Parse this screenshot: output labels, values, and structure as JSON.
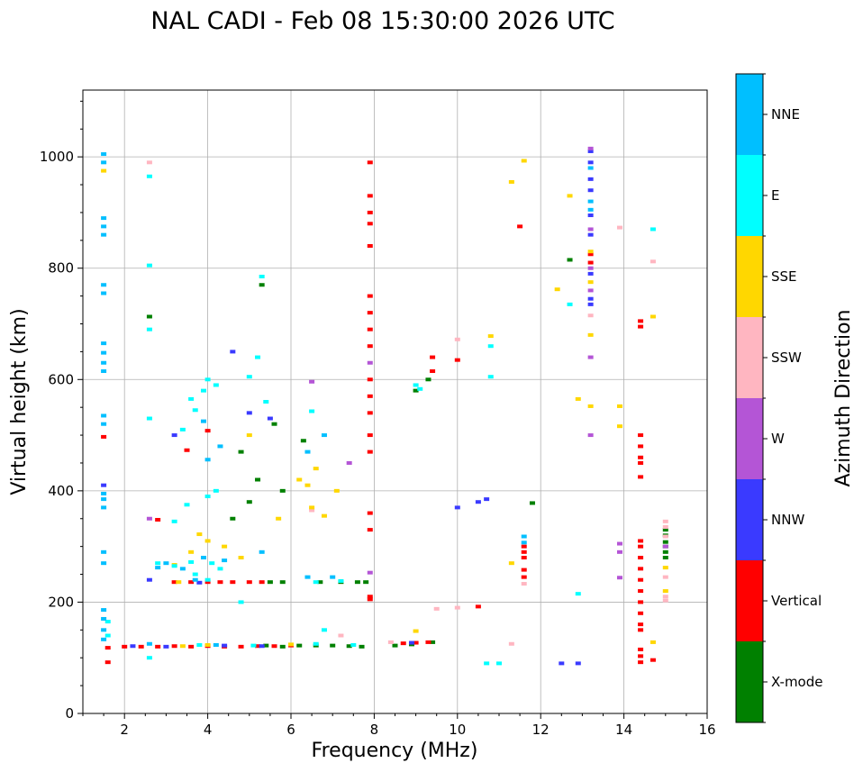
{
  "chart_data": {
    "type": "scatter",
    "title": "NAL CADI - Feb 08 15:30:00 2026 UTC",
    "xlabel": "Frequency (MHz)",
    "ylabel": "Virtual height (km)",
    "xlim": [
      1,
      16
    ],
    "ylim": [
      0,
      1120
    ],
    "xticks": [
      2,
      4,
      6,
      8,
      10,
      12,
      14,
      16
    ],
    "yticks": [
      0,
      200,
      400,
      600,
      800,
      1000
    ],
    "grid": true,
    "colorbar": {
      "label": "Azimuth Direction",
      "categories": [
        "X-mode",
        "Vertical",
        "NNW",
        "W",
        "SSW",
        "SSE",
        "E",
        "NNE"
      ],
      "colors": [
        "#008000",
        "#ff0000",
        "#3a3aff",
        "#b455d6",
        "#ffb6c1",
        "#ffd700",
        "#00ffff",
        "#00bfff"
      ]
    },
    "series": [
      {
        "name": "X-mode",
        "points": [
          [
            5.4,
            122
          ],
          [
            5.8,
            120
          ],
          [
            6.2,
            122
          ],
          [
            6.6,
            122
          ],
          [
            7.0,
            122
          ],
          [
            7.4,
            121
          ],
          [
            7.7,
            120
          ],
          [
            8.5,
            122
          ],
          [
            8.9,
            124
          ],
          [
            9.4,
            128
          ],
          [
            5.5,
            236
          ],
          [
            5.8,
            236
          ],
          [
            6.7,
            236
          ],
          [
            7.2,
            236
          ],
          [
            7.6,
            236
          ],
          [
            7.8,
            236
          ],
          [
            5.8,
            400
          ],
          [
            5.2,
            420
          ],
          [
            4.8,
            470
          ],
          [
            5.6,
            520
          ],
          [
            6.3,
            490
          ],
          [
            5.3,
            770
          ],
          [
            12.7,
            815
          ],
          [
            11.8,
            378
          ],
          [
            9.0,
            580
          ],
          [
            9.3,
            600
          ],
          [
            15.0,
            330
          ],
          [
            15.0,
            320
          ],
          [
            15.0,
            308
          ],
          [
            15.0,
            300
          ],
          [
            15.0,
            290
          ],
          [
            15.0,
            280
          ],
          [
            4.6,
            350
          ],
          [
            5.0,
            380
          ],
          [
            2.6,
            713
          ]
        ]
      },
      {
        "name": "Vertical",
        "points": [
          [
            1.6,
            118
          ],
          [
            1.6,
            92
          ],
          [
            2.0,
            120
          ],
          [
            2.4,
            120
          ],
          [
            2.8,
            120
          ],
          [
            3.2,
            121
          ],
          [
            3.6,
            120
          ],
          [
            4.0,
            121
          ],
          [
            4.4,
            120
          ],
          [
            4.8,
            120
          ],
          [
            5.2,
            121
          ],
          [
            5.6,
            121
          ],
          [
            6.0,
            122
          ],
          [
            8.7,
            126
          ],
          [
            9.0,
            127
          ],
          [
            9.3,
            128
          ],
          [
            3.2,
            236
          ],
          [
            3.6,
            236
          ],
          [
            4.0,
            236
          ],
          [
            4.3,
            236
          ],
          [
            4.6,
            236
          ],
          [
            5.0,
            236
          ],
          [
            5.3,
            236
          ],
          [
            7.9,
            205
          ],
          [
            7.9,
            210
          ],
          [
            7.9,
            570
          ],
          [
            7.9,
            750
          ],
          [
            7.9,
            990
          ],
          [
            7.9,
            930
          ],
          [
            7.9,
            900
          ],
          [
            7.9,
            880
          ],
          [
            7.9,
            840
          ],
          [
            7.9,
            720
          ],
          [
            7.9,
            690
          ],
          [
            7.9,
            660
          ],
          [
            7.9,
            600
          ],
          [
            7.9,
            540
          ],
          [
            7.9,
            500
          ],
          [
            7.9,
            470
          ],
          [
            7.9,
            360
          ],
          [
            7.9,
            330
          ],
          [
            1.5,
            497
          ],
          [
            4.0,
            508
          ],
          [
            3.5,
            473
          ],
          [
            2.8,
            348
          ],
          [
            11.6,
            300
          ],
          [
            11.6,
            290
          ],
          [
            11.6,
            280
          ],
          [
            11.6,
            258
          ],
          [
            11.6,
            245
          ],
          [
            14.4,
            300
          ],
          [
            14.4,
            280
          ],
          [
            14.4,
            260
          ],
          [
            14.4,
            240
          ],
          [
            14.4,
            220
          ],
          [
            14.4,
            200
          ],
          [
            14.4,
            180
          ],
          [
            14.4,
            160
          ],
          [
            14.4,
            150
          ],
          [
            14.4,
            310
          ],
          [
            14.4,
            500
          ],
          [
            14.4,
            480
          ],
          [
            14.4,
            460
          ],
          [
            14.4,
            450
          ],
          [
            14.4,
            425
          ],
          [
            14.4,
            115
          ],
          [
            14.4,
            103
          ],
          [
            14.4,
            92
          ],
          [
            14.7,
            96
          ],
          [
            14.4,
            705
          ],
          [
            14.4,
            695
          ],
          [
            10.0,
            635
          ],
          [
            10.5,
            192
          ],
          [
            11.5,
            875
          ],
          [
            9.4,
            640
          ],
          [
            9.4,
            615
          ],
          [
            13.2,
            810
          ],
          [
            13.2,
            825
          ]
        ]
      },
      {
        "name": "NNW",
        "points": [
          [
            2.2,
            121
          ],
          [
            3.0,
            120
          ],
          [
            4.4,
            122
          ],
          [
            5.3,
            121
          ],
          [
            8.9,
            127
          ],
          [
            10.0,
            370
          ],
          [
            10.5,
            380
          ],
          [
            10.7,
            385
          ],
          [
            12.9,
            90
          ],
          [
            12.5,
            90
          ],
          [
            13.2,
            1010
          ],
          [
            13.2,
            990
          ],
          [
            13.2,
            960
          ],
          [
            13.2,
            940
          ],
          [
            13.2,
            895
          ],
          [
            13.2,
            860
          ],
          [
            13.2,
            790
          ],
          [
            13.2,
            745
          ],
          [
            13.2,
            735
          ],
          [
            1.5,
            410
          ],
          [
            4.6,
            650
          ],
          [
            3.2,
            500
          ],
          [
            5.0,
            540
          ],
          [
            5.5,
            530
          ],
          [
            2.6,
            240
          ],
          [
            3.8,
            235
          ]
        ]
      },
      {
        "name": "W",
        "points": [
          [
            13.2,
            1015
          ],
          [
            13.2,
            870
          ],
          [
            13.2,
            800
          ],
          [
            13.2,
            760
          ],
          [
            13.2,
            640
          ],
          [
            13.2,
            500
          ],
          [
            13.9,
            305
          ],
          [
            13.9,
            290
          ],
          [
            13.9,
            244
          ],
          [
            7.9,
            630
          ],
          [
            7.9,
            253
          ],
          [
            6.5,
            596
          ],
          [
            7.4,
            450
          ],
          [
            15.0,
            300
          ],
          [
            2.6,
            350
          ]
        ]
      },
      {
        "name": "SSW",
        "points": [
          [
            8.4,
            128
          ],
          [
            10.0,
            190
          ],
          [
            11.3,
            125
          ],
          [
            11.6,
            233
          ],
          [
            13.2,
            715
          ],
          [
            13.9,
            873
          ],
          [
            14.7,
            812
          ],
          [
            15.0,
            345
          ],
          [
            15.0,
            335
          ],
          [
            15.0,
            318
          ],
          [
            15.0,
            245
          ],
          [
            15.0,
            210
          ],
          [
            15.0,
            203
          ],
          [
            9.5,
            188
          ],
          [
            10.0,
            672
          ],
          [
            6.5,
            365
          ],
          [
            2.6,
            990
          ],
          [
            7.2,
            140
          ]
        ]
      },
      {
        "name": "SSE",
        "points": [
          [
            1.5,
            975
          ],
          [
            3.4,
            121
          ],
          [
            4.0,
            123
          ],
          [
            6.0,
            124
          ],
          [
            9.0,
            148
          ],
          [
            11.3,
            270
          ],
          [
            11.3,
            955
          ],
          [
            11.6,
            993
          ],
          [
            12.4,
            762
          ],
          [
            12.7,
            930
          ],
          [
            12.9,
            565
          ],
          [
            13.2,
            552
          ],
          [
            13.2,
            680
          ],
          [
            13.2,
            775
          ],
          [
            13.2,
            830
          ],
          [
            13.9,
            552
          ],
          [
            13.9,
            516
          ],
          [
            14.7,
            713
          ],
          [
            14.7,
            128
          ],
          [
            15.0,
            262
          ],
          [
            15.0,
            220
          ],
          [
            10.8,
            678
          ],
          [
            7.1,
            400
          ],
          [
            6.5,
            370
          ],
          [
            6.2,
            420
          ],
          [
            4.4,
            300
          ],
          [
            3.6,
            290
          ],
          [
            3.8,
            322
          ],
          [
            4.0,
            310
          ],
          [
            5.0,
            500
          ],
          [
            5.7,
            350
          ],
          [
            6.4,
            410
          ],
          [
            6.6,
            440
          ],
          [
            6.8,
            355
          ],
          [
            3.2,
            267
          ],
          [
            4.8,
            280
          ],
          [
            3.3,
            236
          ]
        ]
      },
      {
        "name": "E",
        "points": [
          [
            1.6,
            140
          ],
          [
            1.6,
            165
          ],
          [
            2.6,
            100
          ],
          [
            3.8,
            123
          ],
          [
            5.1,
            122
          ],
          [
            6.6,
            125
          ],
          [
            6.8,
            150
          ],
          [
            7.5,
            123
          ],
          [
            10.7,
            90
          ],
          [
            11.0,
            90
          ],
          [
            10.8,
            605
          ],
          [
            10.8,
            660
          ],
          [
            12.7,
            735
          ],
          [
            12.9,
            215
          ],
          [
            14.7,
            870
          ],
          [
            2.6,
            530
          ],
          [
            4.0,
            600
          ],
          [
            4.2,
            590
          ],
          [
            3.9,
            580
          ],
          [
            3.6,
            565
          ],
          [
            3.7,
            545
          ],
          [
            3.4,
            510
          ],
          [
            4.2,
            400
          ],
          [
            4.0,
            390
          ],
          [
            3.5,
            375
          ],
          [
            3.2,
            345
          ],
          [
            2.8,
            270
          ],
          [
            3.2,
            265
          ],
          [
            3.6,
            272
          ],
          [
            4.1,
            270
          ],
          [
            4.3,
            260
          ],
          [
            3.7,
            250
          ],
          [
            4.0,
            240
          ],
          [
            4.8,
            200
          ],
          [
            5.2,
            640
          ],
          [
            5.3,
            785
          ],
          [
            9.0,
            590
          ],
          [
            9.1,
            583
          ],
          [
            6.5,
            543
          ],
          [
            5.4,
            560
          ],
          [
            5.0,
            605
          ],
          [
            6.6,
            236
          ],
          [
            7.2,
            238
          ],
          [
            2.6,
            965
          ],
          [
            2.6,
            805
          ],
          [
            2.6,
            690
          ]
        ]
      },
      {
        "name": "NNE",
        "points": [
          [
            1.5,
            1005
          ],
          [
            1.5,
            990
          ],
          [
            1.5,
            890
          ],
          [
            1.5,
            875
          ],
          [
            1.5,
            860
          ],
          [
            1.5,
            770
          ],
          [
            1.5,
            755
          ],
          [
            1.5,
            665
          ],
          [
            1.5,
            648
          ],
          [
            1.5,
            630
          ],
          [
            1.5,
            615
          ],
          [
            1.5,
            535
          ],
          [
            1.5,
            520
          ],
          [
            1.5,
            395
          ],
          [
            1.5,
            385
          ],
          [
            1.5,
            370
          ],
          [
            1.5,
            290
          ],
          [
            1.5,
            270
          ],
          [
            1.5,
            186
          ],
          [
            1.5,
            170
          ],
          [
            1.5,
            150
          ],
          [
            1.5,
            133
          ],
          [
            2.6,
            125
          ],
          [
            4.2,
            123
          ],
          [
            11.6,
            318
          ],
          [
            11.6,
            307
          ],
          [
            13.2,
            920
          ],
          [
            13.2,
            905
          ],
          [
            13.2,
            980
          ],
          [
            6.8,
            500
          ],
          [
            6.4,
            470
          ],
          [
            3.9,
            525
          ],
          [
            4.3,
            480
          ],
          [
            2.8,
            262
          ],
          [
            3.0,
            270
          ],
          [
            3.4,
            260
          ],
          [
            3.9,
            280
          ],
          [
            4.4,
            275
          ],
          [
            5.3,
            290
          ],
          [
            6.4,
            245
          ],
          [
            7.0,
            245
          ],
          [
            3.7,
            240
          ],
          [
            4.0,
            456
          ]
        ]
      }
    ]
  }
}
